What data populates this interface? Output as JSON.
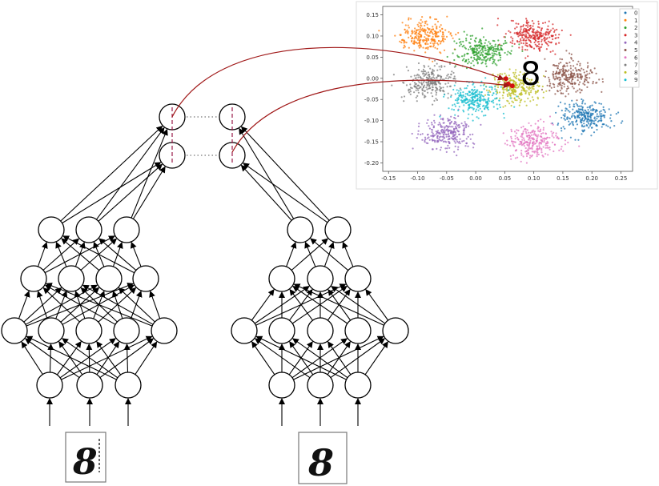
{
  "scatter": {
    "annotation_digit": "8",
    "legend": [
      "0",
      "1",
      "2",
      "3",
      "4",
      "5",
      "6",
      "7",
      "8",
      "9"
    ],
    "xticks": [
      "-0.15",
      "-0.10",
      "-0.05",
      "0.00",
      "0.05",
      "0.10",
      "0.15",
      "0.20",
      "0.25"
    ],
    "yticks": [
      "0.15",
      "0.10",
      "0.05",
      "0.00",
      "-0.05",
      "-0.10",
      "-0.15",
      "-0.20"
    ],
    "colors": [
      "#1f77b4",
      "#ff7f0e",
      "#2ca02c",
      "#d62728",
      "#9467bd",
      "#8c564b",
      "#e377c2",
      "#7f7f7f",
      "#bcbd22",
      "#17becf"
    ]
  },
  "chart_data": {
    "type": "scatter",
    "xlim": [
      -0.16,
      0.27
    ],
    "ylim": [
      -0.22,
      0.17
    ],
    "grid": false,
    "legend_position": "top-right",
    "series": [
      {
        "name": "0",
        "center": [
          0.19,
          -0.09
        ]
      },
      {
        "name": "1",
        "center": [
          -0.09,
          0.1
        ]
      },
      {
        "name": "2",
        "center": [
          0.01,
          0.065
        ]
      },
      {
        "name": "3",
        "center": [
          0.1,
          0.1
        ]
      },
      {
        "name": "4",
        "center": [
          -0.05,
          -0.13
        ]
      },
      {
        "name": "5",
        "center": [
          0.16,
          0.005
        ]
      },
      {
        "name": "6",
        "center": [
          0.1,
          -0.15
        ]
      },
      {
        "name": "7",
        "center": [
          -0.08,
          -0.01
        ]
      },
      {
        "name": "8",
        "center": [
          0.07,
          -0.02
        ]
      },
      {
        "name": "9",
        "center": [
          0.0,
          -0.05
        ]
      }
    ],
    "highlight_points": [
      [
        0.052,
        -0.001
      ],
      [
        0.063,
        -0.018
      ],
      [
        0.056,
        -0.013
      ]
    ]
  },
  "inputs": {
    "left_digit": "8",
    "right_digit": "8"
  }
}
